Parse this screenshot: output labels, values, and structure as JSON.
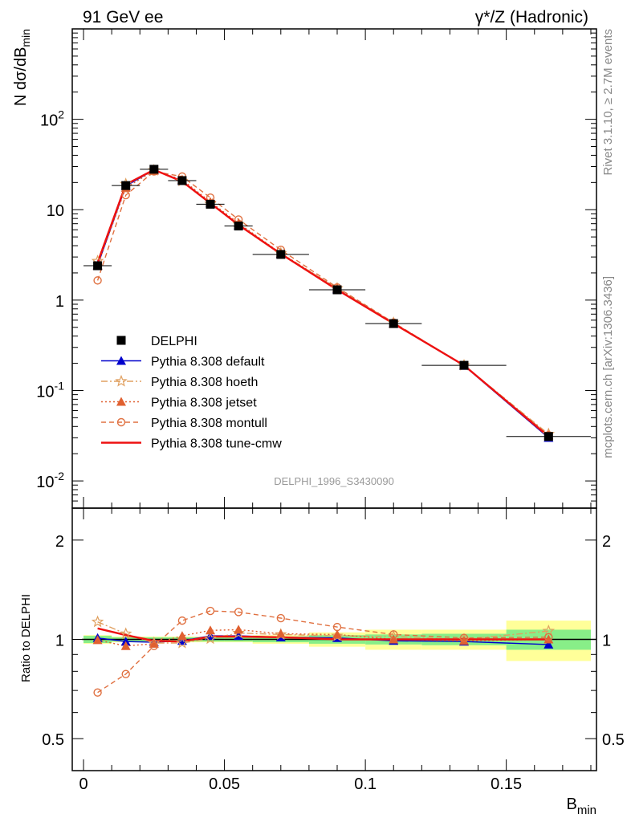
{
  "header": {
    "left": "91 GeV ee",
    "right": "γ*/Z (Hadronic)"
  },
  "side_labels": {
    "rivet": "Rivet 3.1.10, ≥ 2.7M events",
    "mcplots": "mcplots.cern.ch [arXiv:1306.3436]"
  },
  "watermark": "DELPHI_1996_S3430090",
  "chart_data": [
    {
      "type": "line",
      "panel": "main",
      "ylabel": "N dσ/dB_min",
      "yscale": "log",
      "ylim": [
        0.005,
        1000
      ],
      "xlim": [
        -0.004,
        0.182
      ],
      "y_ticks": [
        {
          "value": 0.01,
          "label": "10",
          "exp": "-2"
        },
        {
          "value": 0.1,
          "label": "10",
          "exp": "-1"
        },
        {
          "value": 1,
          "label": "1",
          "exp": ""
        },
        {
          "value": 10,
          "label": "10",
          "exp": ""
        },
        {
          "value": 100,
          "label": "10",
          "exp": "2"
        }
      ],
      "legend_position": "bottom-left",
      "data": {
        "x": [
          0.005,
          0.015,
          0.025,
          0.035,
          0.045,
          0.055,
          0.07,
          0.09,
          0.11,
          0.135,
          0.165
        ],
        "xerr": [
          0.005,
          0.005,
          0.005,
          0.005,
          0.005,
          0.005,
          0.01,
          0.01,
          0.01,
          0.015,
          0.015
        ],
        "values": [
          2.4,
          18.5,
          28,
          21,
          11.5,
          6.6,
          3.2,
          1.3,
          0.55,
          0.19,
          0.031
        ]
      },
      "series": [
        {
          "name": "DELPHI",
          "marker": "square",
          "color": "#000000",
          "values": [
            2.4,
            18.5,
            28,
            21,
            11.5,
            6.6,
            3.2,
            1.3,
            0.55,
            0.19,
            0.031
          ]
        },
        {
          "name": "Pythia 8.308 default",
          "marker": "triangle",
          "color": "#0000cc",
          "dash": "solid",
          "values": [
            2.42,
            18.3,
            27.5,
            20.8,
            11.8,
            6.75,
            3.25,
            1.32,
            0.55,
            0.188,
            0.03
          ]
        },
        {
          "name": "Pythia 8.308 hoeth",
          "marker": "star",
          "color": "#e0a060",
          "dash": "dashdot",
          "values": [
            2.7,
            19.2,
            27.2,
            20.8,
            11.6,
            6.9,
            3.3,
            1.35,
            0.56,
            0.19,
            0.033
          ]
        },
        {
          "name": "Pythia 8.308 jetset",
          "marker": "triangle",
          "color": "#e06030",
          "dash": "dotted",
          "values": [
            2.4,
            17.5,
            27.0,
            21.5,
            12.2,
            7.1,
            3.3,
            1.35,
            0.55,
            0.19,
            0.032
          ]
        },
        {
          "name": "Pythia 8.308 montull",
          "marker": "circle-open",
          "color": "#e07040",
          "dash": "dashed",
          "values": [
            1.65,
            14.5,
            26.5,
            23.3,
            13.6,
            7.8,
            3.6,
            1.38,
            0.565,
            0.19,
            0.032
          ]
        },
        {
          "name": "Pythia 8.308 tune-cmw",
          "marker": "none",
          "color": "#ee1111",
          "dash": "solid",
          "values": [
            2.6,
            19.0,
            27.7,
            20.5,
            11.8,
            6.8,
            3.25,
            1.3,
            0.55,
            0.19,
            0.031
          ]
        }
      ]
    },
    {
      "type": "line",
      "panel": "ratio",
      "ylabel": "Ratio to DELPHI",
      "xlabel": "B_min",
      "yscale": "log",
      "ylim": [
        0.4,
        2.5
      ],
      "xlim": [
        -0.004,
        0.182
      ],
      "y_ticks": [
        {
          "value": 0.5,
          "label": "0.5"
        },
        {
          "value": 1,
          "label": "1"
        },
        {
          "value": 2,
          "label": "2"
        }
      ],
      "x_ticks": [
        {
          "value": 0,
          "label": "0"
        },
        {
          "value": 0.05,
          "label": "0.05"
        },
        {
          "value": 0.1,
          "label": "0.1"
        },
        {
          "value": 0.15,
          "label": "0.15"
        }
      ],
      "bands": [
        {
          "xlo": 0.0,
          "xhi": 0.01,
          "inner": [
            0.975,
            1.025
          ],
          "outer": [
            0.97,
            1.03
          ]
        },
        {
          "xlo": 0.01,
          "xhi": 0.02,
          "inner": [
            0.985,
            1.015
          ],
          "outer": [
            0.98,
            1.02
          ]
        },
        {
          "xlo": 0.02,
          "xhi": 0.03,
          "inner": [
            0.985,
            1.015
          ],
          "outer": [
            0.98,
            1.02
          ]
        },
        {
          "xlo": 0.03,
          "xhi": 0.04,
          "inner": [
            0.985,
            1.015
          ],
          "outer": [
            0.98,
            1.02
          ]
        },
        {
          "xlo": 0.04,
          "xhi": 0.05,
          "inner": [
            0.985,
            1.015
          ],
          "outer": [
            0.98,
            1.02
          ]
        },
        {
          "xlo": 0.05,
          "xhi": 0.06,
          "inner": [
            0.985,
            1.015
          ],
          "outer": [
            0.98,
            1.02
          ]
        },
        {
          "xlo": 0.06,
          "xhi": 0.08,
          "inner": [
            0.98,
            1.02
          ],
          "outer": [
            0.97,
            1.03
          ]
        },
        {
          "xlo": 0.08,
          "xhi": 0.1,
          "inner": [
            0.97,
            1.03
          ],
          "outer": [
            0.95,
            1.05
          ]
        },
        {
          "xlo": 0.1,
          "xhi": 0.12,
          "inner": [
            0.965,
            1.035
          ],
          "outer": [
            0.93,
            1.07
          ]
        },
        {
          "xlo": 0.12,
          "xhi": 0.15,
          "inner": [
            0.96,
            1.04
          ],
          "outer": [
            0.93,
            1.07
          ]
        },
        {
          "xlo": 0.15,
          "xhi": 0.18,
          "inner": [
            0.93,
            1.07
          ],
          "outer": [
            0.86,
            1.14
          ]
        }
      ],
      "series": [
        {
          "name": "Pythia 8.308 default",
          "values": [
            1.01,
            0.985,
            0.98,
            0.99,
            1.025,
            1.025,
            1.015,
            1.01,
            0.99,
            0.985,
            0.965
          ]
        },
        {
          "name": "Pythia 8.308 hoeth",
          "values": [
            1.13,
            1.04,
            0.975,
            0.975,
            1.005,
            1.045,
            1.035,
            1.025,
            1.02,
            1.0,
            1.06
          ]
        },
        {
          "name": "Pythia 8.308 jetset",
          "values": [
            0.995,
            0.955,
            0.97,
            1.025,
            1.065,
            1.07,
            1.04,
            1.035,
            1.0,
            0.99,
            1.0
          ]
        },
        {
          "name": "Pythia 8.308 montull",
          "values": [
            0.69,
            0.785,
            0.955,
            1.14,
            1.22,
            1.21,
            1.16,
            1.09,
            1.035,
            1.01,
            1.015
          ]
        },
        {
          "name": "Pythia 8.308 tune-cmw",
          "values": [
            1.08,
            1.03,
            0.99,
            0.985,
            1.02,
            1.02,
            1.015,
            1.0,
            1.0,
            1.0,
            1.0
          ]
        }
      ]
    }
  ]
}
